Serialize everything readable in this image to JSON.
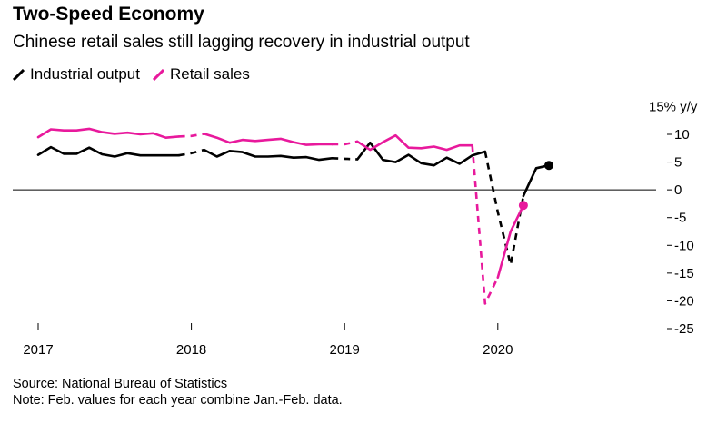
{
  "title": "Two-Speed Economy",
  "subtitle": "Chinese retail sales still lagging recovery in industrial output",
  "legend": {
    "industrial": "Industrial output",
    "retail": "Retail sales"
  },
  "footer": {
    "source": "Source: National Bureau of Statistics",
    "note": "Note: Feb. values for each year combine Jan.-Feb. data."
  },
  "colors": {
    "industrial": "#000000",
    "retail": "#e8199c",
    "axis": "#000000"
  },
  "chart_data": {
    "type": "line",
    "title": "Two-Speed Economy",
    "subtitle": "Chinese retail sales still lagging recovery in industrial output",
    "y_unit_label": "15% y/y",
    "ylim": [
      -25,
      15
    ],
    "yticks": [
      10,
      5,
      0,
      -5,
      -10,
      -15,
      -20,
      -25
    ],
    "ytick_labels": [
      "10",
      "5",
      "0",
      "-5",
      "-10",
      "-15",
      "-20",
      "-25"
    ],
    "x_ticks": [
      "2017-01",
      "2018-01",
      "2019-01",
      "2020-01"
    ],
    "x_tick_labels": [
      "2017",
      "2018",
      "2019",
      "2020"
    ],
    "grid": false,
    "legend_position": "top-left",
    "series": [
      {
        "name": "Industrial output",
        "color": "#000000",
        "end_marker": true,
        "points": [
          {
            "x": "2017-01",
            "y": 6.3
          },
          {
            "x": "2017-02",
            "y": 7.7
          },
          {
            "x": "2017-03",
            "y": 6.5
          },
          {
            "x": "2017-04",
            "y": 6.5
          },
          {
            "x": "2017-05",
            "y": 7.6
          },
          {
            "x": "2017-06",
            "y": 6.4
          },
          {
            "x": "2017-07",
            "y": 6.0
          },
          {
            "x": "2017-08",
            "y": 6.6
          },
          {
            "x": "2017-09",
            "y": 6.2
          },
          {
            "x": "2017-10",
            "y": 6.2
          },
          {
            "x": "2017-11",
            "y": 6.2
          },
          {
            "x": "2017-12",
            "y": 6.2
          },
          {
            "x": "2018-01",
            "y": 6.6
          },
          {
            "x": "2018-02",
            "y": 7.2
          },
          {
            "x": "2018-03",
            "y": 6.0
          },
          {
            "x": "2018-04",
            "y": 7.0
          },
          {
            "x": "2018-05",
            "y": 6.8
          },
          {
            "x": "2018-06",
            "y": 6.0
          },
          {
            "x": "2018-07",
            "y": 6.0
          },
          {
            "x": "2018-08",
            "y": 6.1
          },
          {
            "x": "2018-09",
            "y": 5.8
          },
          {
            "x": "2018-10",
            "y": 5.9
          },
          {
            "x": "2018-11",
            "y": 5.4
          },
          {
            "x": "2018-12",
            "y": 5.7
          },
          {
            "x": "2019-01",
            "y": 5.6
          },
          {
            "x": "2019-02",
            "y": 5.5
          },
          {
            "x": "2019-03",
            "y": 8.5
          },
          {
            "x": "2019-04",
            "y": 5.4
          },
          {
            "x": "2019-05",
            "y": 5.0
          },
          {
            "x": "2019-06",
            "y": 6.3
          },
          {
            "x": "2019-07",
            "y": 4.8
          },
          {
            "x": "2019-08",
            "y": 4.4
          },
          {
            "x": "2019-09",
            "y": 5.8
          },
          {
            "x": "2019-10",
            "y": 4.7
          },
          {
            "x": "2019-11",
            "y": 6.2
          },
          {
            "x": "2019-12",
            "y": 6.9
          },
          {
            "x": "2020-01",
            "y": -4.0
          },
          {
            "x": "2020-02",
            "y": -13.5
          },
          {
            "x": "2020-03",
            "y": -1.1
          },
          {
            "x": "2020-04",
            "y": 3.9
          },
          {
            "x": "2020-05",
            "y": 4.4
          }
        ],
        "dashed_segments": [
          [
            "2017-12",
            "2018-02"
          ],
          [
            "2018-12",
            "2019-02"
          ],
          [
            "2019-12",
            "2020-03"
          ]
        ]
      },
      {
        "name": "Retail sales",
        "color": "#e8199c",
        "end_marker": true,
        "points": [
          {
            "x": "2017-01",
            "y": 9.5
          },
          {
            "x": "2017-02",
            "y": 10.9
          },
          {
            "x": "2017-03",
            "y": 10.7
          },
          {
            "x": "2017-04",
            "y": 10.7
          },
          {
            "x": "2017-05",
            "y": 11.0
          },
          {
            "x": "2017-06",
            "y": 10.4
          },
          {
            "x": "2017-07",
            "y": 10.1
          },
          {
            "x": "2017-08",
            "y": 10.3
          },
          {
            "x": "2017-09",
            "y": 10.0
          },
          {
            "x": "2017-10",
            "y": 10.2
          },
          {
            "x": "2017-11",
            "y": 9.4
          },
          {
            "x": "2017-12",
            "y": 9.6
          },
          {
            "x": "2018-01",
            "y": 9.7
          },
          {
            "x": "2018-02",
            "y": 10.1
          },
          {
            "x": "2018-03",
            "y": 9.4
          },
          {
            "x": "2018-04",
            "y": 8.5
          },
          {
            "x": "2018-05",
            "y": 9.0
          },
          {
            "x": "2018-06",
            "y": 8.8
          },
          {
            "x": "2018-07",
            "y": 9.0
          },
          {
            "x": "2018-08",
            "y": 9.2
          },
          {
            "x": "2018-09",
            "y": 8.6
          },
          {
            "x": "2018-10",
            "y": 8.1
          },
          {
            "x": "2018-11",
            "y": 8.2
          },
          {
            "x": "2018-12",
            "y": 8.2
          },
          {
            "x": "2019-01",
            "y": 8.2
          },
          {
            "x": "2019-02",
            "y": 8.7
          },
          {
            "x": "2019-03",
            "y": 7.2
          },
          {
            "x": "2019-04",
            "y": 8.6
          },
          {
            "x": "2019-05",
            "y": 9.8
          },
          {
            "x": "2019-06",
            "y": 7.6
          },
          {
            "x": "2019-07",
            "y": 7.5
          },
          {
            "x": "2019-08",
            "y": 7.8
          },
          {
            "x": "2019-09",
            "y": 7.2
          },
          {
            "x": "2019-10",
            "y": 8.0
          },
          {
            "x": "2019-11",
            "y": 8.0
          },
          {
            "x": "2019-12",
            "y": -20.5
          },
          {
            "x": "2020-01",
            "y": -15.8
          },
          {
            "x": "2020-02",
            "y": -7.5
          },
          {
            "x": "2020-03",
            "y": -2.8
          }
        ],
        "dashed_segments": [
          [
            "2017-12",
            "2018-02"
          ],
          [
            "2018-12",
            "2019-02"
          ],
          [
            "2019-11",
            "2020-01"
          ]
        ]
      }
    ]
  }
}
